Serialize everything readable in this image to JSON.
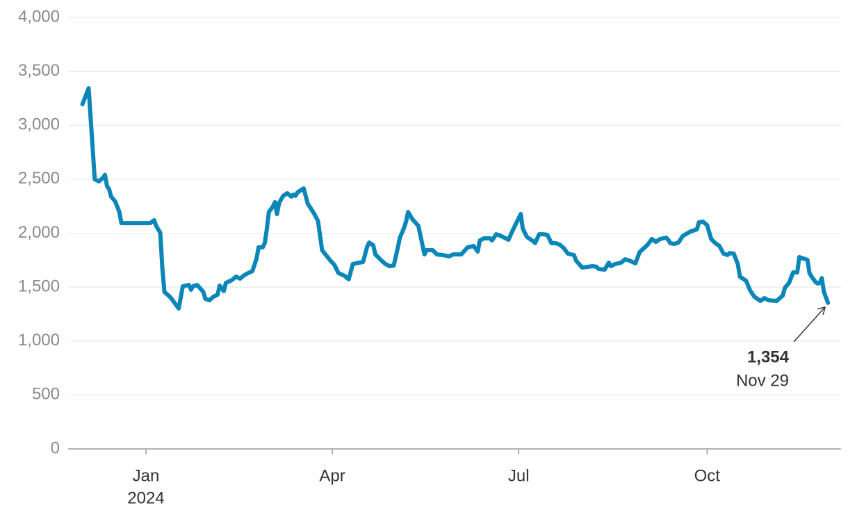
{
  "chart_data": {
    "type": "line",
    "x": [
      "2023-12-01",
      "2023-12-04",
      "2023-12-05",
      "2023-12-07",
      "2023-12-09",
      "2023-12-11",
      "2023-12-12",
      "2023-12-13",
      "2023-12-14",
      "2023-12-15",
      "2023-12-17",
      "2023-12-19",
      "2023-12-20",
      "2023-12-24",
      "2024-01-03",
      "2024-01-05",
      "2024-01-06",
      "2024-01-08",
      "2024-01-09",
      "2024-01-10",
      "2024-01-13",
      "2024-01-16",
      "2024-01-17",
      "2024-01-19",
      "2024-01-22",
      "2024-01-23",
      "2024-01-24",
      "2024-01-26",
      "2024-01-29",
      "2024-01-30",
      "2024-02-01",
      "2024-02-03",
      "2024-02-05",
      "2024-02-06",
      "2024-02-08",
      "2024-02-09",
      "2024-02-12",
      "2024-02-14",
      "2024-02-16",
      "2024-02-18",
      "2024-02-20",
      "2024-02-22",
      "2024-02-24",
      "2024-02-25",
      "2024-02-27",
      "2024-02-28",
      "2024-02-29",
      "2024-03-01",
      "2024-03-03",
      "2024-03-04",
      "2024-03-05",
      "2024-03-06",
      "2024-03-08",
      "2024-03-10",
      "2024-03-12",
      "2024-03-13",
      "2024-03-14",
      "2024-03-15",
      "2024-03-17",
      "2024-03-18",
      "2024-03-20",
      "2024-03-23",
      "2024-03-25",
      "2024-03-27",
      "2024-03-31",
      "2024-04-02",
      "2024-04-04",
      "2024-04-07",
      "2024-04-09",
      "2024-04-11",
      "2024-04-14",
      "2024-04-16",
      "2024-04-18",
      "2024-04-19",
      "2024-04-21",
      "2024-04-22",
      "2024-04-25",
      "2024-04-27",
      "2024-04-29",
      "2024-05-01",
      "2024-05-03",
      "2024-05-04",
      "2024-05-06",
      "2024-05-07",
      "2024-05-08",
      "2024-05-10",
      "2024-05-13",
      "2024-05-16",
      "2024-05-17",
      "2024-05-20",
      "2024-05-22",
      "2024-05-25",
      "2024-05-28",
      "2024-05-30",
      "2024-06-01",
      "2024-06-03",
      "2024-06-06",
      "2024-06-09",
      "2024-06-11",
      "2024-06-12",
      "2024-06-14",
      "2024-06-16",
      "2024-06-17",
      "2024-06-18",
      "2024-06-20",
      "2024-06-22",
      "2024-06-24",
      "2024-06-26",
      "2024-06-28",
      "2024-06-30",
      "2024-07-02",
      "2024-07-03",
      "2024-07-05",
      "2024-07-08",
      "2024-07-09",
      "2024-07-11",
      "2024-07-13",
      "2024-07-15",
      "2024-07-17",
      "2024-07-19",
      "2024-07-21",
      "2024-07-23",
      "2024-07-25",
      "2024-07-28",
      "2024-07-29",
      "2024-08-01",
      "2024-08-04",
      "2024-08-06",
      "2024-08-08",
      "2024-08-09",
      "2024-08-12",
      "2024-08-14",
      "2024-08-15",
      "2024-08-17",
      "2024-08-20",
      "2024-08-22",
      "2024-08-24",
      "2024-08-27",
      "2024-08-29",
      "2024-09-02",
      "2024-09-04",
      "2024-09-06",
      "2024-09-08",
      "2024-09-11",
      "2024-09-12",
      "2024-09-13",
      "2024-09-15",
      "2024-09-17",
      "2024-09-19",
      "2024-09-20",
      "2024-09-23",
      "2024-09-26",
      "2024-09-27",
      "2024-09-29",
      "2024-10-01",
      "2024-10-03",
      "2024-10-05",
      "2024-10-07",
      "2024-10-09",
      "2024-10-11",
      "2024-10-12",
      "2024-10-14",
      "2024-10-16",
      "2024-10-17",
      "2024-10-20",
      "2024-10-22",
      "2024-10-24",
      "2024-10-27",
      "2024-10-29",
      "2024-10-31",
      "2024-11-04",
      "2024-11-07",
      "2024-11-08",
      "2024-11-10",
      "2024-11-12",
      "2024-11-14",
      "2024-11-15",
      "2024-11-19",
      "2024-11-20",
      "2024-11-21",
      "2024-11-23",
      "2024-11-24",
      "2024-11-25",
      "2024-11-26",
      "2024-11-27",
      "2024-11-29"
    ],
    "values": [
      3195,
      3343,
      3066,
      2499,
      2480,
      2512,
      2541,
      2435,
      2409,
      2338,
      2293,
      2196,
      2093,
      2093,
      2093,
      2119,
      2067,
      2003,
      1681,
      1456,
      1404,
      1327,
      1301,
      1507,
      1520,
      1475,
      1507,
      1520,
      1456,
      1391,
      1378,
      1411,
      1430,
      1514,
      1462,
      1539,
      1565,
      1597,
      1578,
      1610,
      1630,
      1649,
      1765,
      1868,
      1868,
      1907,
      2035,
      2196,
      2248,
      2287,
      2177,
      2280,
      2345,
      2370,
      2338,
      2357,
      2345,
      2377,
      2403,
      2415,
      2274,
      2184,
      2113,
      1842,
      1746,
      1707,
      1630,
      1604,
      1572,
      1713,
      1726,
      1733,
      1874,
      1913,
      1887,
      1803,
      1746,
      1713,
      1694,
      1700,
      1868,
      1958,
      2048,
      2106,
      2196,
      2132,
      2067,
      1803,
      1842,
      1842,
      1803,
      1797,
      1784,
      1803,
      1803,
      1803,
      1868,
      1881,
      1829,
      1932,
      1952,
      1952,
      1952,
      1932,
      1990,
      1977,
      1958,
      1939,
      2022,
      2100,
      2177,
      2042,
      1965,
      1926,
      1907,
      1990,
      1990,
      1984,
      1907,
      1907,
      1894,
      1861,
      1810,
      1797,
      1746,
      1681,
      1688,
      1694,
      1688,
      1668,
      1662,
      1726,
      1694,
      1713,
      1726,
      1758,
      1746,
      1720,
      1823,
      1894,
      1945,
      1919,
      1945,
      1958,
      1939,
      1907,
      1900,
      1913,
      1971,
      1984,
      2016,
      2035,
      2100,
      2106,
      2074,
      1945,
      1907,
      1881,
      1810,
      1797,
      1816,
      1810,
      1713,
      1597,
      1559,
      1469,
      1411,
      1372,
      1398,
      1378,
      1372,
      1423,
      1494,
      1539,
      1636,
      1636,
      1778,
      1752,
      1630,
      1597,
      1546,
      1533,
      1539,
      1584,
      1456,
      1354
    ],
    "color": "#0a86b8",
    "xlim": [
      "2023-11-24",
      "2024-12-02"
    ],
    "xticks": [
      {
        "value": "2024-01-01",
        "label": "Jan"
      },
      {
        "value": "2024-04-01",
        "label": "Apr"
      },
      {
        "value": "2024-07-01",
        "label": "Jul"
      },
      {
        "value": "2024-10-01",
        "label": "Oct"
      }
    ],
    "year_label": "2024",
    "ylim": [
      0,
      4000
    ],
    "yticks": [
      0,
      500,
      {
        "value": 1000,
        "label": "1,000"
      },
      {
        "value": 1500,
        "label": "1,500"
      },
      {
        "value": 2000,
        "label": "2,000"
      },
      {
        "value": 2500,
        "label": "2,500"
      },
      {
        "value": 3000,
        "label": "3,000"
      },
      {
        "value": 3500,
        "label": "3,500"
      },
      {
        "value": 4000,
        "label": "4,000"
      }
    ],
    "grid": true,
    "annotation": {
      "value": 1354,
      "label": "1,354",
      "date": "Nov 29"
    }
  }
}
